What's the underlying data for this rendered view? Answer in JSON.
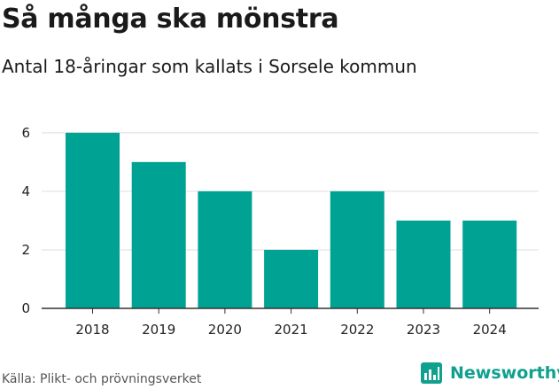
{
  "header": {
    "title": "Så många ska mönstra",
    "subtitle": "Antal 18-åringar som kallats i Sorsele kommun"
  },
  "footer": {
    "source": "Källa: Plikt- och prövningsverket",
    "brand": "Newsworthy",
    "brand_icon": "bar-chart-logo-icon"
  },
  "colors": {
    "bar": "#00a294",
    "grid": "#dddddd",
    "axis": "#333333",
    "brand": "#10a08e"
  },
  "chart_data": {
    "type": "bar",
    "title": "Så många ska mönstra",
    "subtitle": "Antal 18-åringar som kallats i Sorsele kommun",
    "categories": [
      "2018",
      "2019",
      "2020",
      "2021",
      "2022",
      "2023",
      "2024"
    ],
    "values": [
      6,
      5,
      4,
      2,
      4,
      3,
      3
    ],
    "yticks": [
      0,
      2,
      4,
      6
    ],
    "ylim": [
      0,
      6.6
    ],
    "xlabel": "",
    "ylabel": "",
    "grid": true
  }
}
